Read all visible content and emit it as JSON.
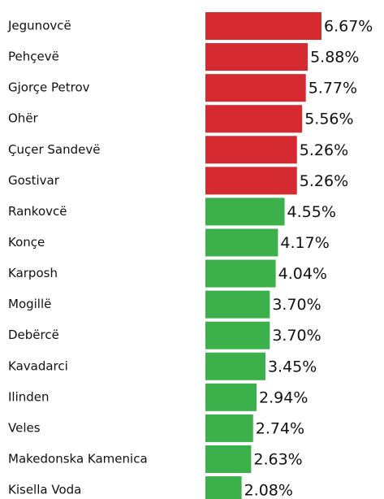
{
  "chart_data": {
    "type": "bar",
    "orientation": "horizontal",
    "categories": [
      "Jegunovcë",
      "Pehçevë",
      "Gjorçe Petrov",
      "Ohër",
      "Çuçer Sandevë",
      "Gostivar",
      "Rankovcë",
      "Konçe",
      "Karposh",
      "Mogillë",
      "Debërcë",
      "Kavadarci",
      "Ilinden",
      "Veles",
      "Makedonska Kamenica",
      "Kisella Voda"
    ],
    "values": [
      6.67,
      5.88,
      5.77,
      5.56,
      5.26,
      5.26,
      4.55,
      4.17,
      4.04,
      3.7,
      3.7,
      3.45,
      2.94,
      2.74,
      2.63,
      2.08
    ],
    "value_labels": [
      "6.67%",
      "5.88%",
      "5.77%",
      "5.56%",
      "5.26%",
      "5.26%",
      "4.55%",
      "4.17%",
      "4.04%",
      "3.70%",
      "3.70%",
      "3.45%",
      "2.94%",
      "2.74%",
      "2.63%",
      "2.08%"
    ],
    "colors": [
      "#d42a30",
      "#d42a30",
      "#d42a30",
      "#d42a30",
      "#d42a30",
      "#d42a30",
      "#3cb04a",
      "#3cb04a",
      "#3cb04a",
      "#3cb04a",
      "#3cb04a",
      "#3cb04a",
      "#3cb04a",
      "#3cb04a",
      "#3cb04a",
      "#3cb04a"
    ]
  }
}
